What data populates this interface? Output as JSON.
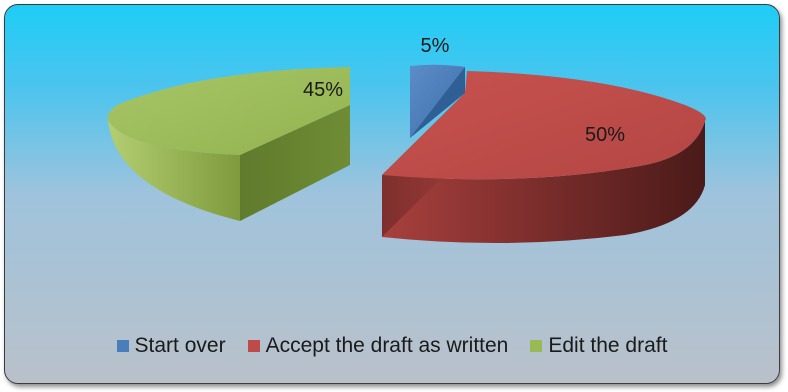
{
  "chart_data": {
    "type": "pie",
    "style": "3d-exploded",
    "categories": [
      "Start over",
      "Accept the draft as written",
      "Edit the draft"
    ],
    "values": [
      5,
      50,
      45
    ],
    "data_labels": [
      "5%",
      "50%",
      "45%"
    ],
    "colors": [
      "#4a7ebb",
      "#be4b48",
      "#98b954"
    ],
    "legend_position": "bottom"
  }
}
